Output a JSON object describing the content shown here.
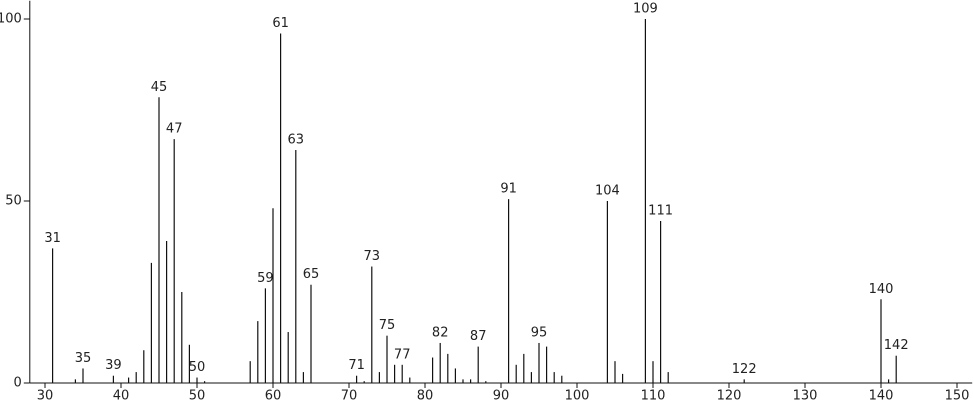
{
  "chart_data": {
    "type": "stick",
    "x": [
      31,
      34,
      35,
      39,
      41,
      42,
      43,
      44,
      45,
      46,
      47,
      48,
      49,
      50,
      51,
      57,
      58,
      59,
      60,
      61,
      62,
      63,
      64,
      65,
      71,
      72,
      73,
      74,
      75,
      76,
      77,
      78,
      81,
      82,
      83,
      84,
      85,
      86,
      87,
      88,
      91,
      92,
      93,
      94,
      95,
      96,
      97,
      98,
      104,
      105,
      106,
      109,
      110,
      111,
      112,
      122,
      140,
      141,
      142
    ],
    "values": [
      37,
      1,
      4,
      2,
      1.5,
      3,
      9,
      33,
      78.5,
      39,
      67,
      25,
      10.5,
      1.5,
      0.5,
      6,
      17,
      26,
      48,
      96,
      14,
      64,
      3,
      27,
      2,
      0.5,
      32,
      3,
      13,
      5,
      5,
      1.5,
      7,
      11,
      8,
      4,
      1,
      1,
      10,
      0.5,
      50.5,
      5,
      8,
      3,
      11,
      10,
      3,
      2,
      50,
      6,
      2.5,
      100,
      6,
      44.5,
      3,
      1,
      23,
      1,
      7.5
    ],
    "labels": [
      31,
      null,
      35,
      39,
      null,
      null,
      null,
      null,
      45,
      null,
      47,
      null,
      null,
      50,
      null,
      null,
      null,
      59,
      null,
      61,
      null,
      63,
      null,
      65,
      71,
      null,
      73,
      null,
      75,
      null,
      77,
      null,
      null,
      82,
      null,
      null,
      null,
      null,
      87,
      null,
      91,
      null,
      null,
      null,
      95,
      null,
      null,
      null,
      104,
      null,
      null,
      109,
      null,
      111,
      null,
      122,
      140,
      null,
      142
    ],
    "color": "#111111",
    "xlim": [
      28,
      152
    ],
    "ylim": [
      0,
      105
    ],
    "xticks": [
      30,
      40,
      50,
      60,
      70,
      80,
      90,
      100,
      110,
      120,
      130,
      140,
      150
    ],
    "yticks": [
      0,
      50,
      100
    ]
  }
}
